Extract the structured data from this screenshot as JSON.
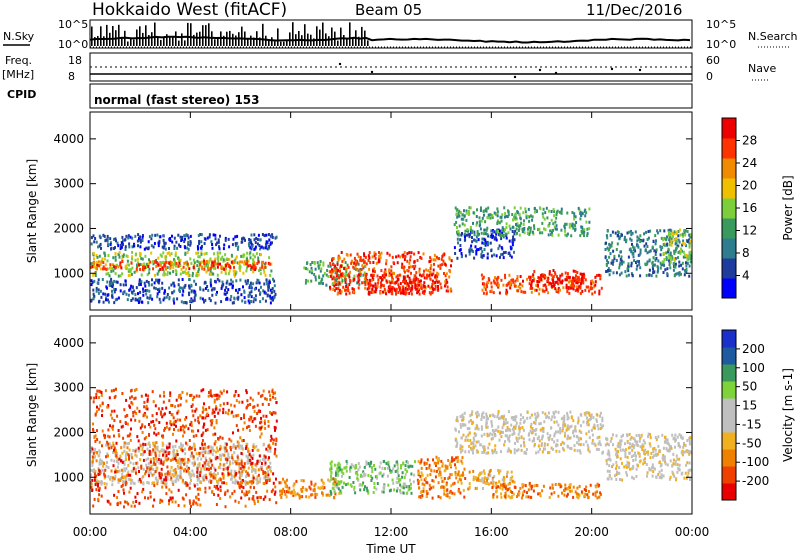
{
  "header": {
    "station": "Hokkaido West (fitACF)",
    "beam": "Beam 05",
    "date": "11/Dec/2016"
  },
  "strip": {
    "nsky_label": "N.Sky",
    "nsearch_label": "N.Search",
    "log_hi": "10^5",
    "log_lo": "10^0",
    "freq_label": "Freq.",
    "freq_unit": "[MHz]",
    "freq_hi": "18",
    "freq_lo": "8",
    "nave_hi": "60",
    "nave_lo": "0",
    "nave_label": "Nave",
    "cpid_label": "CPID",
    "cpid_text": "normal (fast stereo) 153"
  },
  "colors": {
    "power": [
      "#0000ff",
      "#1e3c9c",
      "#2e7d8f",
      "#3a9a5e",
      "#7ccf3a",
      "#f0c000",
      "#f08a00",
      "#ff3300",
      "#ee0000"
    ],
    "velocity": [
      "#e80000",
      "#f04000",
      "#f08000",
      "#f0b020",
      "#bfbfbf",
      "#bfbfbf",
      "#7ed23a",
      "#3a9a5e",
      "#1e5aa0",
      "#1a30c8"
    ]
  },
  "chart_data": [
    {
      "type": "heatmap",
      "title": "Power",
      "xlabel": "Time UT",
      "ylabel": "Slant Range [km]",
      "colorbar_label": "Power [dB]",
      "colorbar_ticks": [
        "4",
        "8",
        "12",
        "16",
        "20",
        "24",
        "28"
      ],
      "x_ticks": [
        "00:00",
        "04:00",
        "08:00",
        "12:00",
        "16:00",
        "20:00",
        "00:00"
      ],
      "y_ticks": [
        "1000",
        "2000",
        "3000",
        "4000"
      ],
      "xlim": [
        0,
        24
      ],
      "ylim": [
        180,
        4600
      ],
      "regions": [
        {
          "t": [
            0,
            7.3
          ],
          "r": [
            900,
            1500
          ],
          "level": 4
        },
        {
          "t": [
            0,
            7.3
          ],
          "r": [
            1050,
            1300
          ],
          "level": 7
        },
        {
          "t": [
            0,
            7.5
          ],
          "r": [
            300,
            900
          ],
          "level": 1
        },
        {
          "t": [
            0,
            7.5
          ],
          "r": [
            1500,
            1900
          ],
          "level": 1
        },
        {
          "t": [
            8.5,
            11
          ],
          "r": [
            700,
            1300
          ],
          "level": 3
        },
        {
          "t": [
            9.5,
            14.5
          ],
          "r": [
            500,
            1500
          ],
          "level": 7
        },
        {
          "t": [
            11,
            14
          ],
          "r": [
            500,
            1000
          ],
          "level": 8
        },
        {
          "t": [
            14.5,
            17
          ],
          "r": [
            1300,
            2000
          ],
          "level": 1
        },
        {
          "t": [
            14.5,
            20
          ],
          "r": [
            1800,
            2500
          ],
          "level": 3
        },
        {
          "t": [
            15.5,
            20.5
          ],
          "r": [
            500,
            1000
          ],
          "level": 7
        },
        {
          "t": [
            17.5,
            19.8
          ],
          "r": [
            600,
            1100
          ],
          "level": 8
        },
        {
          "t": [
            20.5,
            24
          ],
          "r": [
            900,
            2000
          ],
          "level": 2
        },
        {
          "t": [
            22.8,
            24
          ],
          "r": [
            1200,
            2000
          ],
          "level": 4
        }
      ]
    },
    {
      "type": "heatmap",
      "title": "Velocity",
      "xlabel": "Time UT",
      "ylabel": "Slant Range [km]",
      "colorbar_label": "Velocity [m s-1]",
      "colorbar_ticks": [
        "-200",
        "-100",
        "-50",
        "-15",
        "15",
        "50",
        "100",
        "200"
      ],
      "x_ticks": [
        "00:00",
        "04:00",
        "08:00",
        "12:00",
        "16:00",
        "20:00",
        "00:00"
      ],
      "y_ticks": [
        "1000",
        "2000",
        "3000",
        "4000"
      ],
      "xlim": [
        0,
        24
      ],
      "ylim": [
        180,
        4600
      ],
      "regions": [
        {
          "t": [
            0,
            7.3
          ],
          "r": [
            800,
            1800
          ],
          "level": 4
        },
        {
          "t": [
            0,
            7.5
          ],
          "r": [
            300,
            3000
          ],
          "level": 1
        },
        {
          "t": [
            7.5,
            10
          ],
          "r": [
            500,
            1000
          ],
          "level": 2
        },
        {
          "t": [
            9.5,
            13
          ],
          "r": [
            600,
            1400
          ],
          "level": 6
        },
        {
          "t": [
            13,
            15
          ],
          "r": [
            500,
            1500
          ],
          "level": 2
        },
        {
          "t": [
            15,
            17
          ],
          "r": [
            700,
            1200
          ],
          "level": 3
        },
        {
          "t": [
            14.5,
            20.5
          ],
          "r": [
            1500,
            2500
          ],
          "level": 4
        },
        {
          "t": [
            16,
            20.5
          ],
          "r": [
            500,
            900
          ],
          "level": 2
        },
        {
          "t": [
            20.5,
            24
          ],
          "r": [
            900,
            2000
          ],
          "level": 4
        }
      ]
    }
  ]
}
